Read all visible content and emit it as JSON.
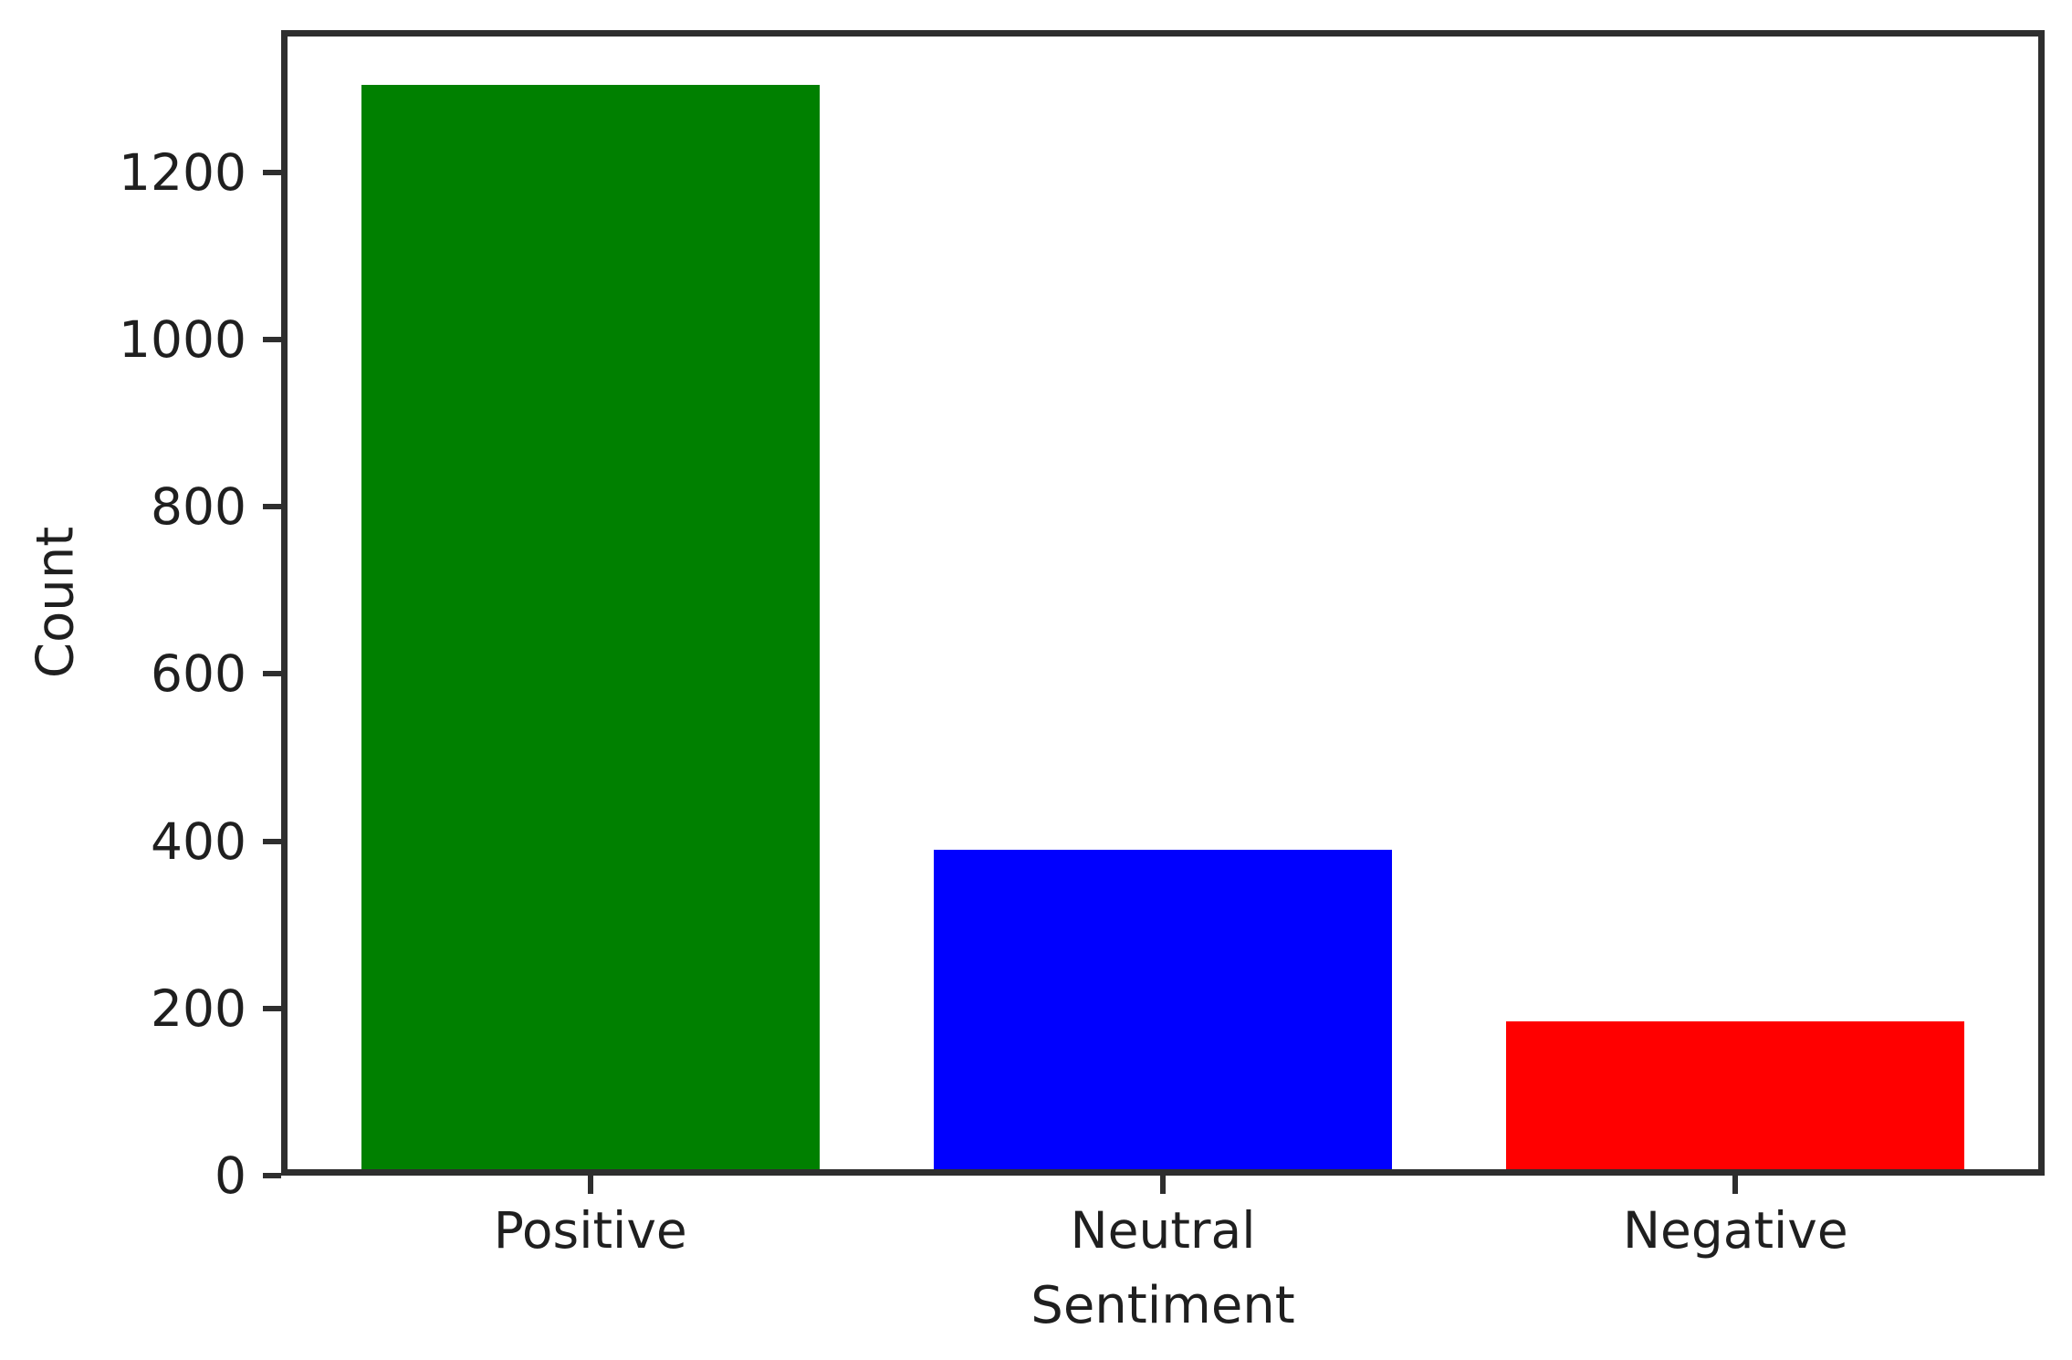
{
  "chart_data": {
    "type": "bar",
    "title": "",
    "xlabel": "Sentiment",
    "ylabel": "Count",
    "categories": [
      "Positive",
      "Neutral",
      "Negative"
    ],
    "values": [
      1305,
      390,
      185
    ],
    "bar_colors": [
      "#008000",
      "#0000ff",
      "#ff0000"
    ],
    "yticks": [
      0,
      200,
      400,
      600,
      800,
      1000,
      1200
    ],
    "ylim": [
      0,
      1370
    ],
    "xlim": [
      -0.54,
      2.54
    ],
    "bar_width": 0.8,
    "grid": false,
    "legend_position": "none"
  },
  "style": {
    "spine_color": "#2e2e2e",
    "text_color": "#1f1f1f",
    "background": "#ffffff"
  }
}
